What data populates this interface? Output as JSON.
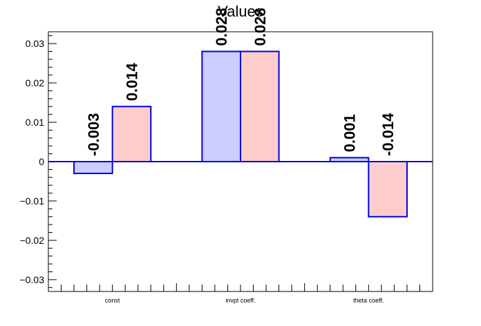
{
  "chart_data": {
    "type": "bar",
    "title": "Values",
    "xlabel": "",
    "ylabel": "",
    "categories": [
      "const",
      "invpt coeff.",
      "theta coeff."
    ],
    "series": [
      {
        "values": [
          -0.003,
          0.028,
          0.001
        ],
        "labels": [
          "-0.003",
          "0.028",
          "0.001"
        ],
        "fill": "#ccccff",
        "stroke": "#0000dd"
      },
      {
        "values": [
          0.014,
          0.028,
          -0.014
        ],
        "labels": [
          "0.014",
          "0.028",
          "-0.014"
        ],
        "fill": "#ffcccc",
        "stroke": "#0000dd"
      }
    ],
    "ylim": [
      -0.033,
      0.033
    ],
    "yticks": [
      -0.03,
      -0.02,
      -0.01,
      0,
      0.01,
      0.02,
      0.03
    ],
    "yticklabels": [
      "−0.03",
      "−0.02",
      "−0.01",
      "0",
      "0.01",
      "0.02",
      "0.03"
    ],
    "grid": false,
    "legend": "none"
  }
}
